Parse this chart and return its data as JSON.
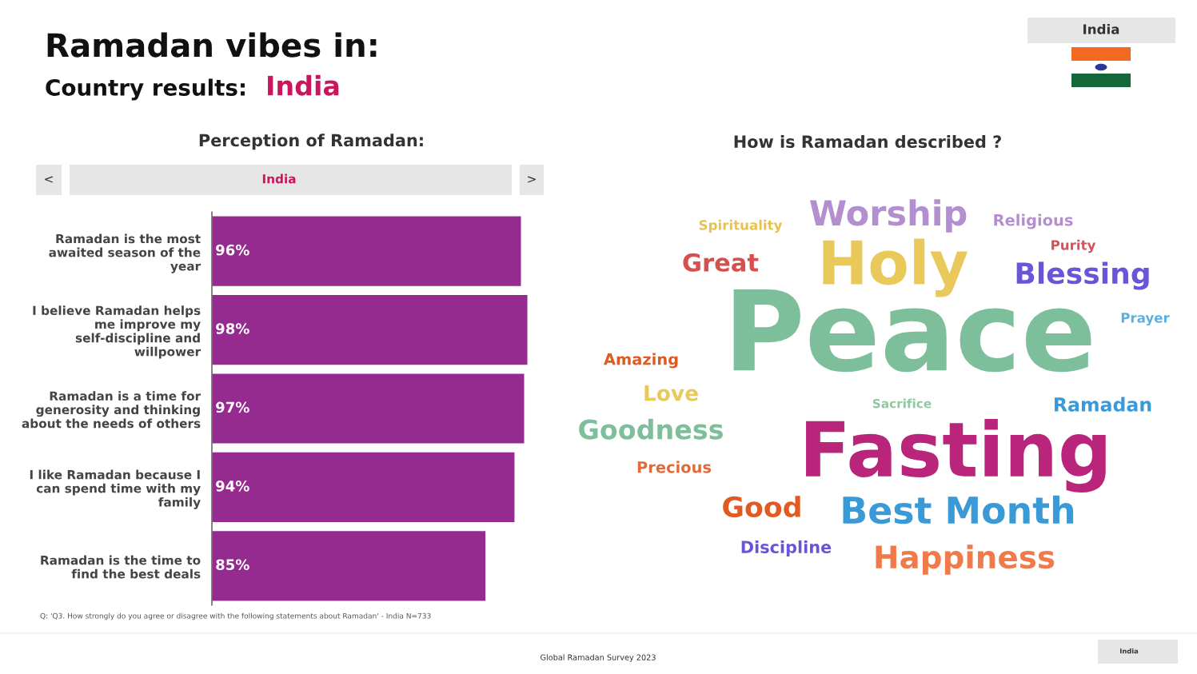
{
  "chart_data": [
    {
      "type": "bar",
      "orientation": "horizontal",
      "title": "Perception of Ramadan:",
      "categories": [
        "Ramadan is the most awaited season of the year",
        "I believe Ramadan helps me improve my self-discipline and willpower",
        "Ramadan is a time for generosity and thinking about the needs of others",
        "I like Ramadan because I can spend time with my family",
        "Ramadan is the time to find the best deals"
      ],
      "values": [
        96,
        98,
        97,
        94,
        85
      ],
      "value_labels": [
        "96%",
        "98%",
        "97%",
        "94%",
        "85%"
      ],
      "color": "#952b8f",
      "tick_labels": "y",
      "annotations": [
        "Ramadan vibes in:",
        "Country results:",
        "India",
        "India",
        "<",
        "India",
        ">",
        "Q: 'Q3. How strongly do you agree or disagree with the following statements about Ramadan' - India N=733",
        "Global Ramadan Survey 2023",
        "India"
      ]
    },
    {
      "type": "other",
      "title": "How is Ramadan described ?",
      "annotations": [
        "Spirituality",
        "Worship",
        "Religious",
        "Purity",
        "Great",
        "Holy",
        "Blessing",
        "Peace",
        "Prayer",
        "Amazing",
        "Love",
        "Sacrifice",
        "Ramadan",
        "Goodness",
        "Fasting",
        "Precious",
        "Good",
        "Best Month",
        "Discipline",
        "Happiness"
      ],
      "colors": [
        "#e8c24a",
        "#b48fd0",
        "#b48fd0",
        "#d8505a",
        "#d84f4f",
        "#e8c95a",
        "#6a55d8",
        "#7dbf9a",
        "#5bb0e0",
        "#e05a22",
        "#e8c95a",
        "#8fc8a0",
        "#3a9ad8",
        "#7dbf9a",
        "#b8257a",
        "#e06a3a",
        "#e05a22",
        "#3a9ad8",
        "#6a55d8",
        "#f07a4a"
      ]
    }
  ]
}
